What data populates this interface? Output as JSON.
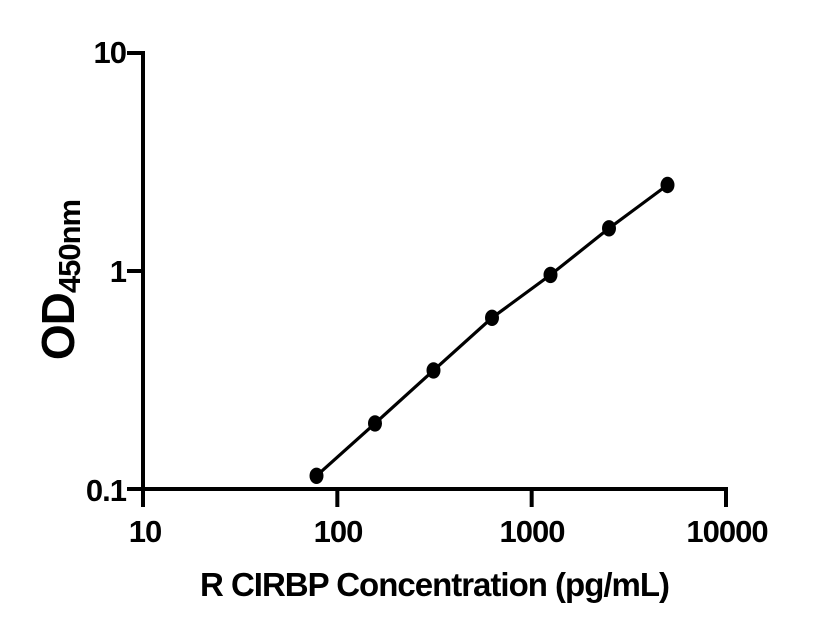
{
  "figure": {
    "background_color": "#ffffff",
    "foreground_color": "#000000"
  },
  "chart_data": {
    "type": "scatter",
    "subtype": "log-log standard curve with connecting line",
    "title": "",
    "xlabel": "R CIRBP Concentration (pg/mL)",
    "ylabel": "OD450nm",
    "ylabel_main": "OD",
    "ylabel_subscript": "450nm",
    "x_scale": "log10",
    "y_scale": "log10",
    "xlim": [
      10,
      10000
    ],
    "ylim": [
      0.1,
      10
    ],
    "x_tick_values": [
      10,
      100,
      1000,
      10000
    ],
    "x_tick_labels": [
      "10",
      "100",
      "1000",
      "10000"
    ],
    "y_tick_values": [
      10,
      1,
      0.1
    ],
    "y_tick_labels": [
      "10",
      "1",
      "0.1"
    ],
    "grid": false,
    "legend": false,
    "line": {
      "color": "#000000",
      "width": 3.2
    },
    "marker": {
      "shape": "ellipse",
      "color": "#000000",
      "rx": 7,
      "ry": 8.2
    },
    "points": [
      {
        "x": 78.125,
        "y": 0.115
      },
      {
        "x": 156.25,
        "y": 0.2
      },
      {
        "x": 312.5,
        "y": 0.35
      },
      {
        "x": 625,
        "y": 0.61
      },
      {
        "x": 1250,
        "y": 0.96
      },
      {
        "x": 2500,
        "y": 1.57
      },
      {
        "x": 5000,
        "y": 2.48
      }
    ]
  }
}
